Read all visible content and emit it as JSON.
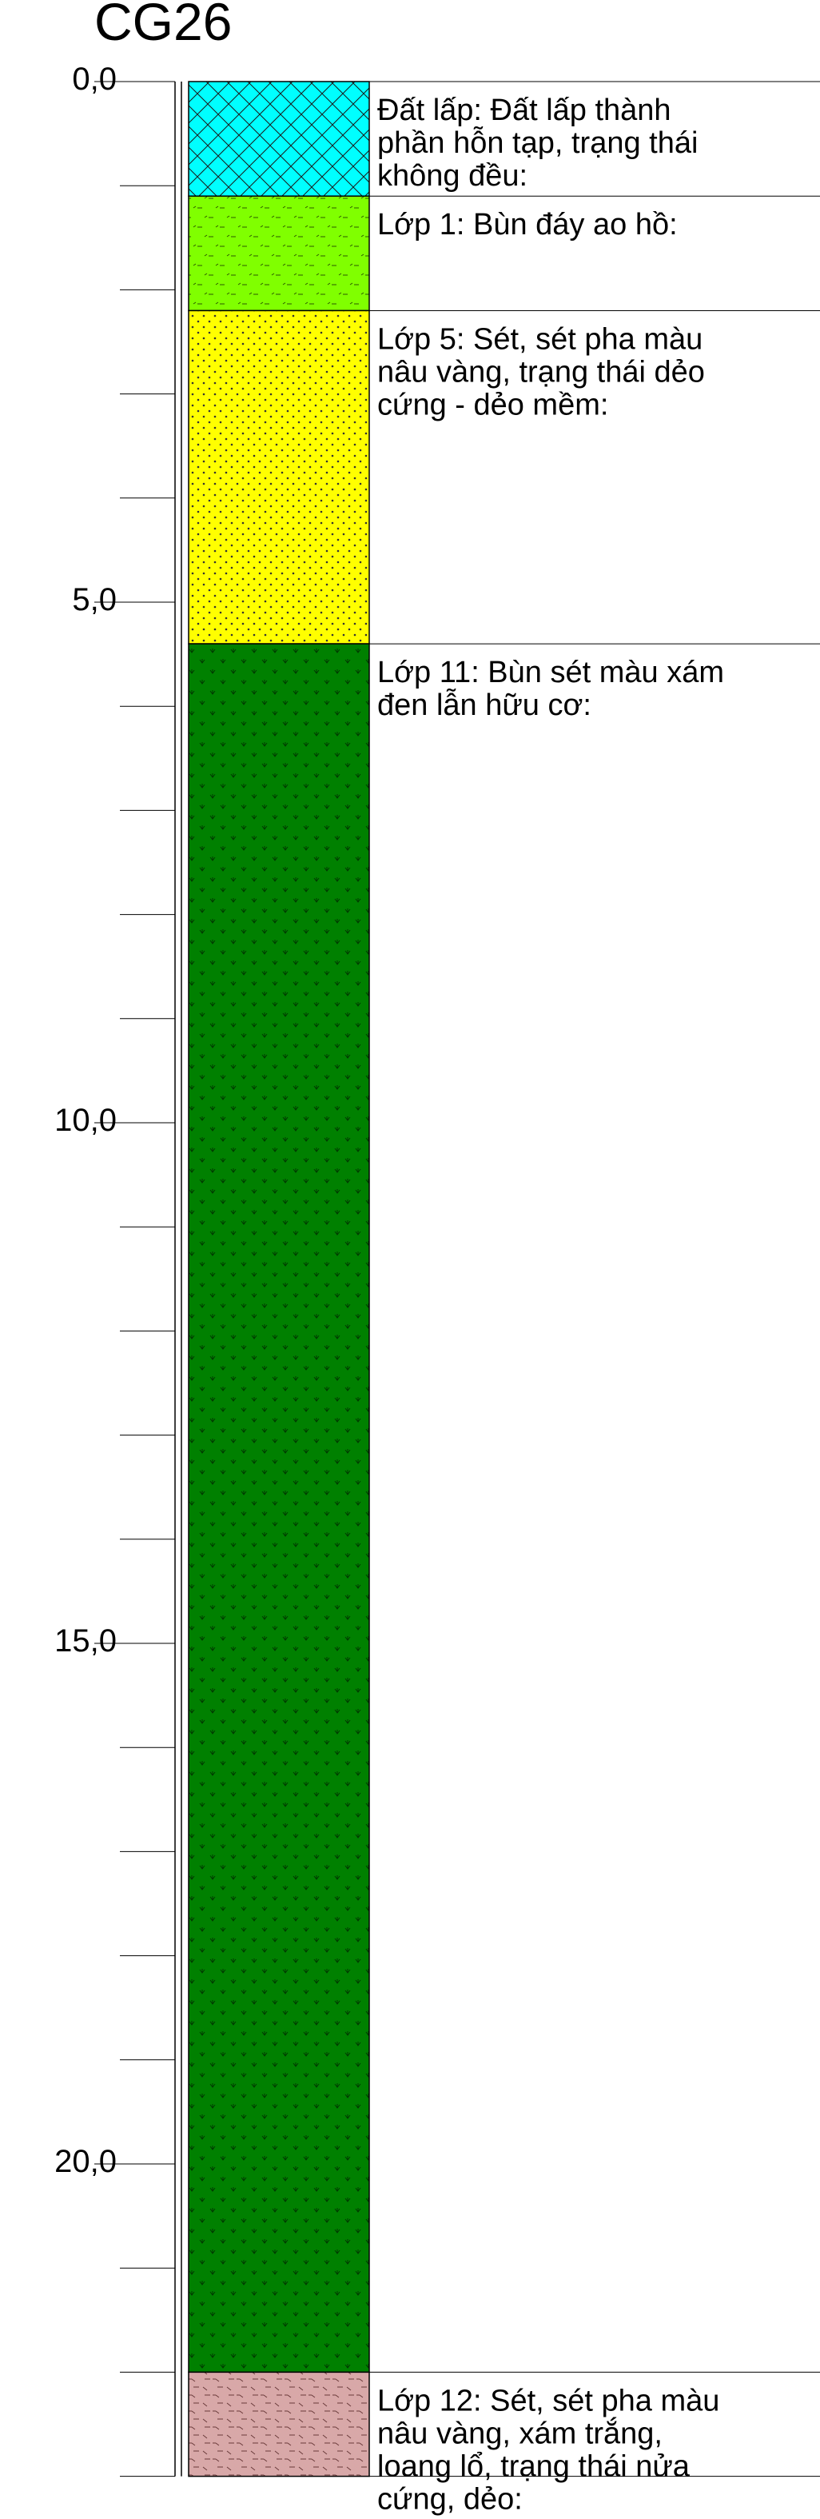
{
  "borehole": {
    "name": "CG26",
    "depth_scale": {
      "unit": "m",
      "min": 0,
      "max": 23.0,
      "major_step": 5,
      "minor_step": 1
    },
    "depth_labels": [
      "0,0",
      "5,0",
      "10,0",
      "15,0",
      "20,0"
    ],
    "layers": [
      {
        "top": 0.0,
        "bottom": 1.1,
        "pattern": "fill-crosshatch",
        "color": "#00ffff",
        "description": [
          "Đất lấp: Đất lấp thành",
          "phần hỗn tạp, trạng thái",
          "không đều:"
        ]
      },
      {
        "top": 1.1,
        "bottom": 2.2,
        "pattern": "mud-dashes",
        "color": "#80ff00",
        "description": [
          "Lớp 1: Bùn đáy ao hồ:"
        ]
      },
      {
        "top": 2.2,
        "bottom": 5.4,
        "pattern": "clay-dots",
        "color": "#ffff00",
        "description": [
          "Lớp 5: Sét, sét pha màu",
          "nâu vàng, trạng thái dẻo",
          "cứng - dẻo mềm:"
        ]
      },
      {
        "top": 5.4,
        "bottom": 22.0,
        "pattern": "organic-clay-marks",
        "color": "#008000",
        "description": [
          "Lớp 11: Bùn sét màu xám",
          "đen lẫn hữu cơ:"
        ]
      },
      {
        "top": 22.0,
        "bottom": 23.0,
        "pattern": "dashed-clay",
        "color": "#d8a8a8",
        "description": [
          "Lớp 12: Sét, sét pha màu",
          "nâu vàng, xám trắng,",
          "loang lổ, trạng thái nửa",
          "cứng, dẻo:"
        ]
      }
    ]
  }
}
